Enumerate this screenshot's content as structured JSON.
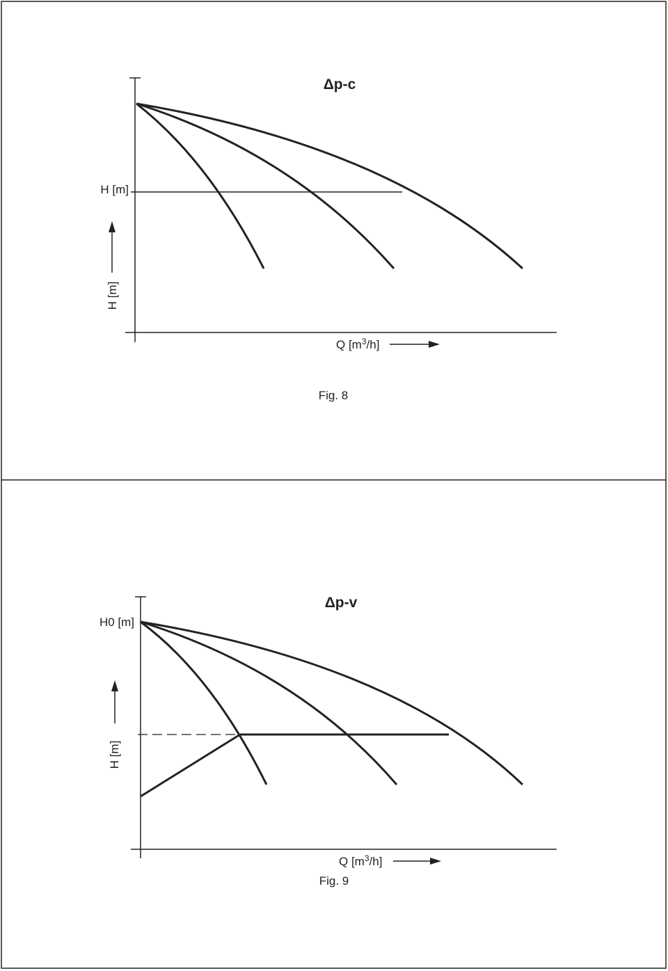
{
  "figures": [
    {
      "title": "Δp-c",
      "h_label": "H [m]",
      "y_axis_label": "H [m]",
      "x_axis_label": {
        "before": "Q [m",
        "sup": "3",
        "after": "/h]"
      },
      "caption": "Fig. 8"
    },
    {
      "title": "Δp-v",
      "h_label": "H0 [m]",
      "y_axis_label": "H [m]",
      "x_axis_label": {
        "before": "Q [m",
        "sup": "3",
        "after": "/h]"
      },
      "caption": "Fig. 9"
    }
  ]
}
